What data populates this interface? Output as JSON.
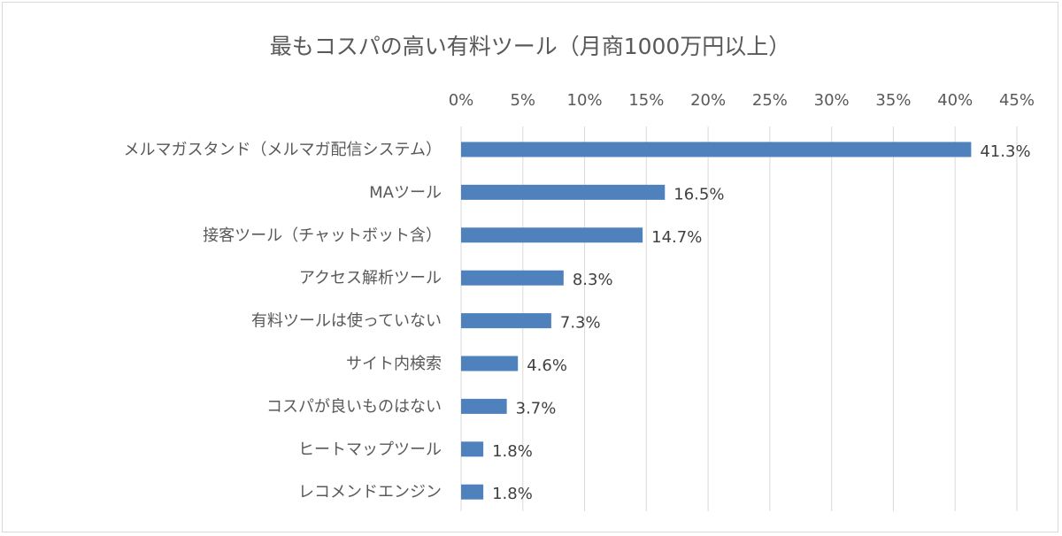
{
  "chart_data": {
    "type": "bar",
    "orientation": "horizontal",
    "title": "最もコスパの高い有料ツール（月商1000万円以上）",
    "categories": [
      "メルマガスタンド（メルマガ配信システム）",
      "MAツール",
      "接客ツール（チャットボット含）",
      "アクセス解析ツール",
      "有料ツールは使っていない",
      "サイト内検索",
      "コスパが良いものはない",
      "ヒートマップツール",
      "レコメンドエンジン"
    ],
    "values": [
      41.3,
      16.5,
      14.7,
      8.3,
      7.3,
      4.6,
      3.7,
      1.8,
      1.8
    ],
    "value_labels": [
      "41.3%",
      "16.5%",
      "14.7%",
      "8.3%",
      "7.3%",
      "4.6%",
      "3.7%",
      "1.8%",
      "1.8%"
    ],
    "xlim": [
      0,
      45
    ],
    "x_ticks": [
      "0%",
      "5%",
      "10%",
      "15%",
      "20%",
      "25%",
      "30%",
      "35%",
      "40%",
      "45%"
    ],
    "x_axis_position": "top",
    "grid": true,
    "bar_color": "#4f81bd"
  }
}
